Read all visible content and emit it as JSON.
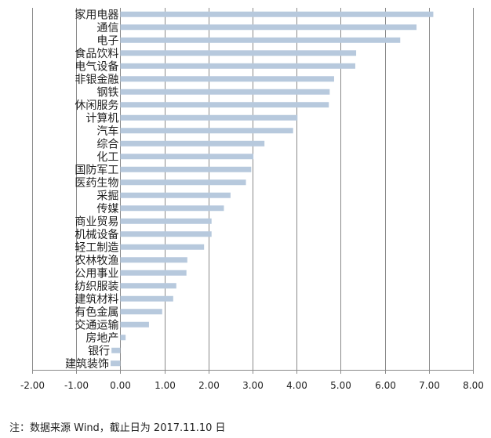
{
  "chart_data": {
    "type": "bar",
    "orientation": "horizontal",
    "categories": [
      "家用电器",
      "通信",
      "电子",
      "食品饮料",
      "电气设备",
      "非银金融",
      "钢铁",
      "休闲服务",
      "计算机",
      "汽车",
      "综合",
      "化工",
      "国防军工",
      "医药生物",
      "采掘",
      "传媒",
      "商业贸易",
      "机械设备",
      "轻工制造",
      "农林牧渔",
      "公用事业",
      "纺织服装",
      "建筑材料",
      "有色金属",
      "交通运输",
      "房地产",
      "银行",
      "建筑装饰"
    ],
    "values": [
      7.1,
      6.72,
      6.35,
      5.35,
      5.33,
      4.85,
      4.75,
      4.73,
      4.02,
      3.92,
      3.27,
      3.02,
      2.97,
      2.85,
      2.5,
      2.35,
      2.07,
      2.07,
      1.9,
      1.52,
      1.5,
      1.27,
      1.2,
      0.95,
      0.65,
      0.12,
      -0.2,
      -0.22
    ],
    "xlim": [
      -2.0,
      8.0
    ],
    "ticks": [
      "-2.00",
      "-1.00",
      "0.00",
      "1.00",
      "2.00",
      "3.00",
      "4.00",
      "5.00",
      "6.00",
      "7.00",
      "8.00"
    ],
    "grid": true,
    "bar_color": "#b7c9dd"
  },
  "note": "注：数据来源 Wind，截止日为 2017.11.10 日"
}
